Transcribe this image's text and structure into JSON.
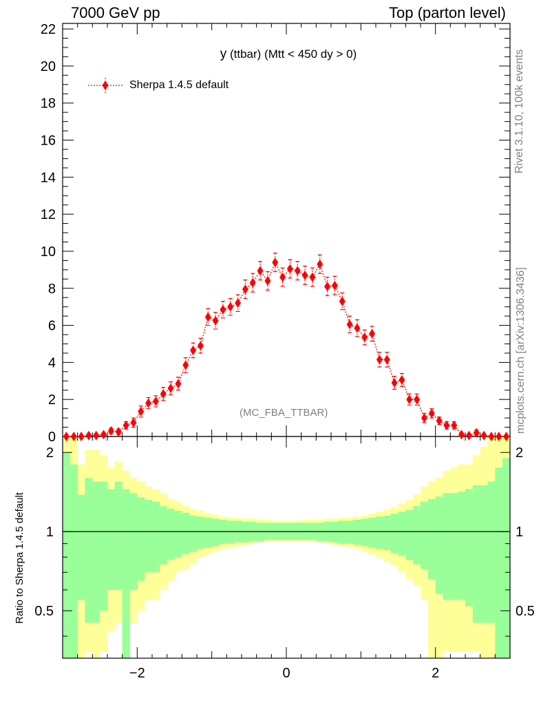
{
  "header": {
    "left": "7000 GeV pp",
    "right": "Top (parton level)"
  },
  "side_labels": {
    "rivet": "Rivet 3.1.10,  100k events",
    "mcplots": "mcplots.cern.ch [arXiv:1306.3436]"
  },
  "ratio_axis_label": "Ratio to Sherpa 1.4.5 default",
  "colors": {
    "data": "#ff0000",
    "band_inner": "#99ff99",
    "band_outer": "#ffff99",
    "axis": "#000000",
    "analysis_tag": "#808080"
  },
  "chart_data": [
    {
      "type": "scatter",
      "title_y": "y",
      "title_rest": " (ttbar) (Mtt < 450 dy > 0)",
      "annotation": "(MC_FBA_TTBAR)",
      "xlim": [
        -3.0,
        3.0
      ],
      "ylim": [
        0,
        22.3
      ],
      "yticks": [
        0,
        2,
        4,
        6,
        8,
        10,
        12,
        14,
        16,
        18,
        20,
        22
      ],
      "series": [
        {
          "name": "Sherpa 1.4.5 default",
          "x": [
            -2.95,
            -2.85,
            -2.75,
            -2.65,
            -2.55,
            -2.45,
            -2.35,
            -2.25,
            -2.15,
            -2.05,
            -1.95,
            -1.85,
            -1.75,
            -1.65,
            -1.55,
            -1.45,
            -1.35,
            -1.25,
            -1.15,
            -1.05,
            -0.95,
            -0.85,
            -0.75,
            -0.65,
            -0.55,
            -0.45,
            -0.35,
            -0.25,
            -0.15,
            -0.05,
            0.05,
            0.15,
            0.25,
            0.35,
            0.45,
            0.55,
            0.65,
            0.75,
            0.85,
            0.95,
            1.05,
            1.15,
            1.25,
            1.35,
            1.45,
            1.55,
            1.65,
            1.75,
            1.85,
            1.95,
            2.05,
            2.15,
            2.25,
            2.35,
            2.45,
            2.55,
            2.65,
            2.75,
            2.85,
            2.95
          ],
          "y": [
            0.0,
            0.0,
            0.0,
            0.05,
            0.05,
            0.1,
            0.3,
            0.25,
            0.6,
            0.75,
            1.35,
            1.8,
            1.9,
            2.3,
            2.6,
            2.85,
            3.85,
            4.65,
            4.9,
            6.45,
            6.25,
            6.85,
            7.0,
            7.2,
            7.95,
            8.3,
            8.95,
            8.4,
            9.4,
            8.6,
            9.05,
            8.95,
            8.7,
            8.6,
            9.3,
            8.1,
            8.15,
            7.3,
            6.05,
            5.85,
            5.35,
            5.55,
            4.15,
            4.15,
            2.9,
            3.05,
            2.0,
            2.0,
            1.0,
            1.25,
            0.85,
            0.6,
            0.6,
            0.1,
            0.05,
            0.2,
            0.05,
            0.0,
            0.0,
            0.0
          ],
          "yerr": [
            0.05,
            0.05,
            0.05,
            0.1,
            0.1,
            0.1,
            0.15,
            0.15,
            0.2,
            0.25,
            0.3,
            0.3,
            0.3,
            0.35,
            0.35,
            0.35,
            0.4,
            0.4,
            0.4,
            0.45,
            0.45,
            0.45,
            0.45,
            0.45,
            0.5,
            0.5,
            0.5,
            0.5,
            0.5,
            0.5,
            0.5,
            0.5,
            0.5,
            0.5,
            0.5,
            0.5,
            0.5,
            0.45,
            0.45,
            0.45,
            0.4,
            0.4,
            0.4,
            0.4,
            0.35,
            0.35,
            0.3,
            0.3,
            0.25,
            0.25,
            0.2,
            0.2,
            0.2,
            0.1,
            0.1,
            0.15,
            0.1,
            0.05,
            0.05,
            0.05
          ]
        }
      ],
      "xticks": [
        -2,
        0,
        2
      ],
      "xtick_labels": [
        "−2",
        "0",
        "2"
      ]
    },
    {
      "type": "area",
      "xlim": [
        -3.0,
        3.0
      ],
      "ylim": [
        0.33,
        2.3
      ],
      "yticks": [
        0.5,
        1,
        2
      ],
      "ytick_labels": [
        "0.5",
        "1",
        "2"
      ],
      "reference_line": 1,
      "bins_x": [
        -2.95,
        -2.85,
        -2.75,
        -2.65,
        -2.55,
        -2.45,
        -2.35,
        -2.25,
        -2.15,
        -2.05,
        -1.95,
        -1.85,
        -1.75,
        -1.65,
        -1.55,
        -1.45,
        -1.35,
        -1.25,
        -1.15,
        -1.05,
        -0.95,
        -0.85,
        -0.75,
        -0.65,
        -0.55,
        -0.45,
        -0.35,
        -0.25,
        -0.15,
        -0.05,
        0.05,
        0.15,
        0.25,
        0.35,
        0.45,
        0.55,
        0.65,
        0.75,
        0.85,
        0.95,
        1.05,
        1.15,
        1.25,
        1.35,
        1.45,
        1.55,
        1.65,
        1.75,
        1.85,
        1.95,
        2.05,
        2.15,
        2.25,
        2.35,
        2.45,
        2.55,
        2.65,
        2.75,
        2.85,
        2.95
      ],
      "green_up": [
        2.0,
        1.8,
        1.38,
        1.6,
        1.55,
        1.55,
        1.45,
        1.55,
        1.45,
        1.4,
        1.35,
        1.32,
        1.3,
        1.25,
        1.22,
        1.2,
        1.18,
        1.15,
        1.14,
        1.13,
        1.12,
        1.11,
        1.1,
        1.1,
        1.09,
        1.09,
        1.08,
        1.08,
        1.08,
        1.08,
        1.08,
        1.08,
        1.08,
        1.08,
        1.08,
        1.09,
        1.09,
        1.1,
        1.1,
        1.11,
        1.12,
        1.13,
        1.14,
        1.15,
        1.17,
        1.19,
        1.21,
        1.25,
        1.3,
        1.33,
        1.36,
        1.4,
        1.4,
        1.42,
        1.45,
        1.5,
        1.5,
        1.55,
        1.75,
        1.9
      ],
      "green_dn": [
        0.3,
        0.3,
        0.55,
        0.45,
        0.45,
        0.5,
        0.6,
        0.6,
        0.3,
        0.6,
        0.65,
        0.7,
        0.7,
        0.75,
        0.78,
        0.8,
        0.82,
        0.84,
        0.86,
        0.87,
        0.88,
        0.9,
        0.9,
        0.91,
        0.91,
        0.92,
        0.92,
        0.93,
        0.93,
        0.93,
        0.93,
        0.93,
        0.93,
        0.93,
        0.92,
        0.92,
        0.91,
        0.9,
        0.9,
        0.89,
        0.88,
        0.87,
        0.86,
        0.85,
        0.83,
        0.81,
        0.78,
        0.75,
        0.72,
        0.66,
        0.58,
        0.55,
        0.55,
        0.55,
        0.52,
        0.45,
        0.45,
        0.45,
        0.3,
        0.3
      ],
      "yellow_up": [
        2.3,
        2.3,
        1.8,
        2.05,
        2.05,
        1.95,
        1.75,
        1.85,
        1.7,
        1.6,
        1.55,
        1.48,
        1.45,
        1.4,
        1.33,
        1.3,
        1.25,
        1.22,
        1.2,
        1.17,
        1.16,
        1.14,
        1.13,
        1.13,
        1.12,
        1.12,
        1.11,
        1.11,
        1.1,
        1.1,
        1.1,
        1.1,
        1.11,
        1.11,
        1.11,
        1.12,
        1.12,
        1.13,
        1.13,
        1.14,
        1.15,
        1.17,
        1.19,
        1.21,
        1.24,
        1.28,
        1.32,
        1.38,
        1.48,
        1.55,
        1.6,
        1.7,
        1.75,
        1.8,
        1.8,
        1.95,
        2.1,
        2.3,
        2.3,
        2.3
      ],
      "yellow_dn": [
        0.3,
        0.3,
        0.3,
        0.35,
        0.3,
        0.35,
        0.42,
        0.45,
        0.3,
        0.45,
        0.5,
        0.55,
        0.55,
        0.6,
        0.65,
        0.7,
        0.72,
        0.76,
        0.8,
        0.82,
        0.84,
        0.86,
        0.87,
        0.88,
        0.89,
        0.9,
        0.91,
        0.92,
        0.92,
        0.92,
        0.92,
        0.92,
        0.92,
        0.92,
        0.91,
        0.9,
        0.89,
        0.88,
        0.87,
        0.86,
        0.84,
        0.82,
        0.8,
        0.77,
        0.74,
        0.7,
        0.66,
        0.62,
        0.55,
        0.3,
        0.3,
        0.35,
        0.35,
        0.35,
        0.35,
        0.35,
        0.3,
        0.3,
        0.3,
        0.3
      ]
    }
  ]
}
